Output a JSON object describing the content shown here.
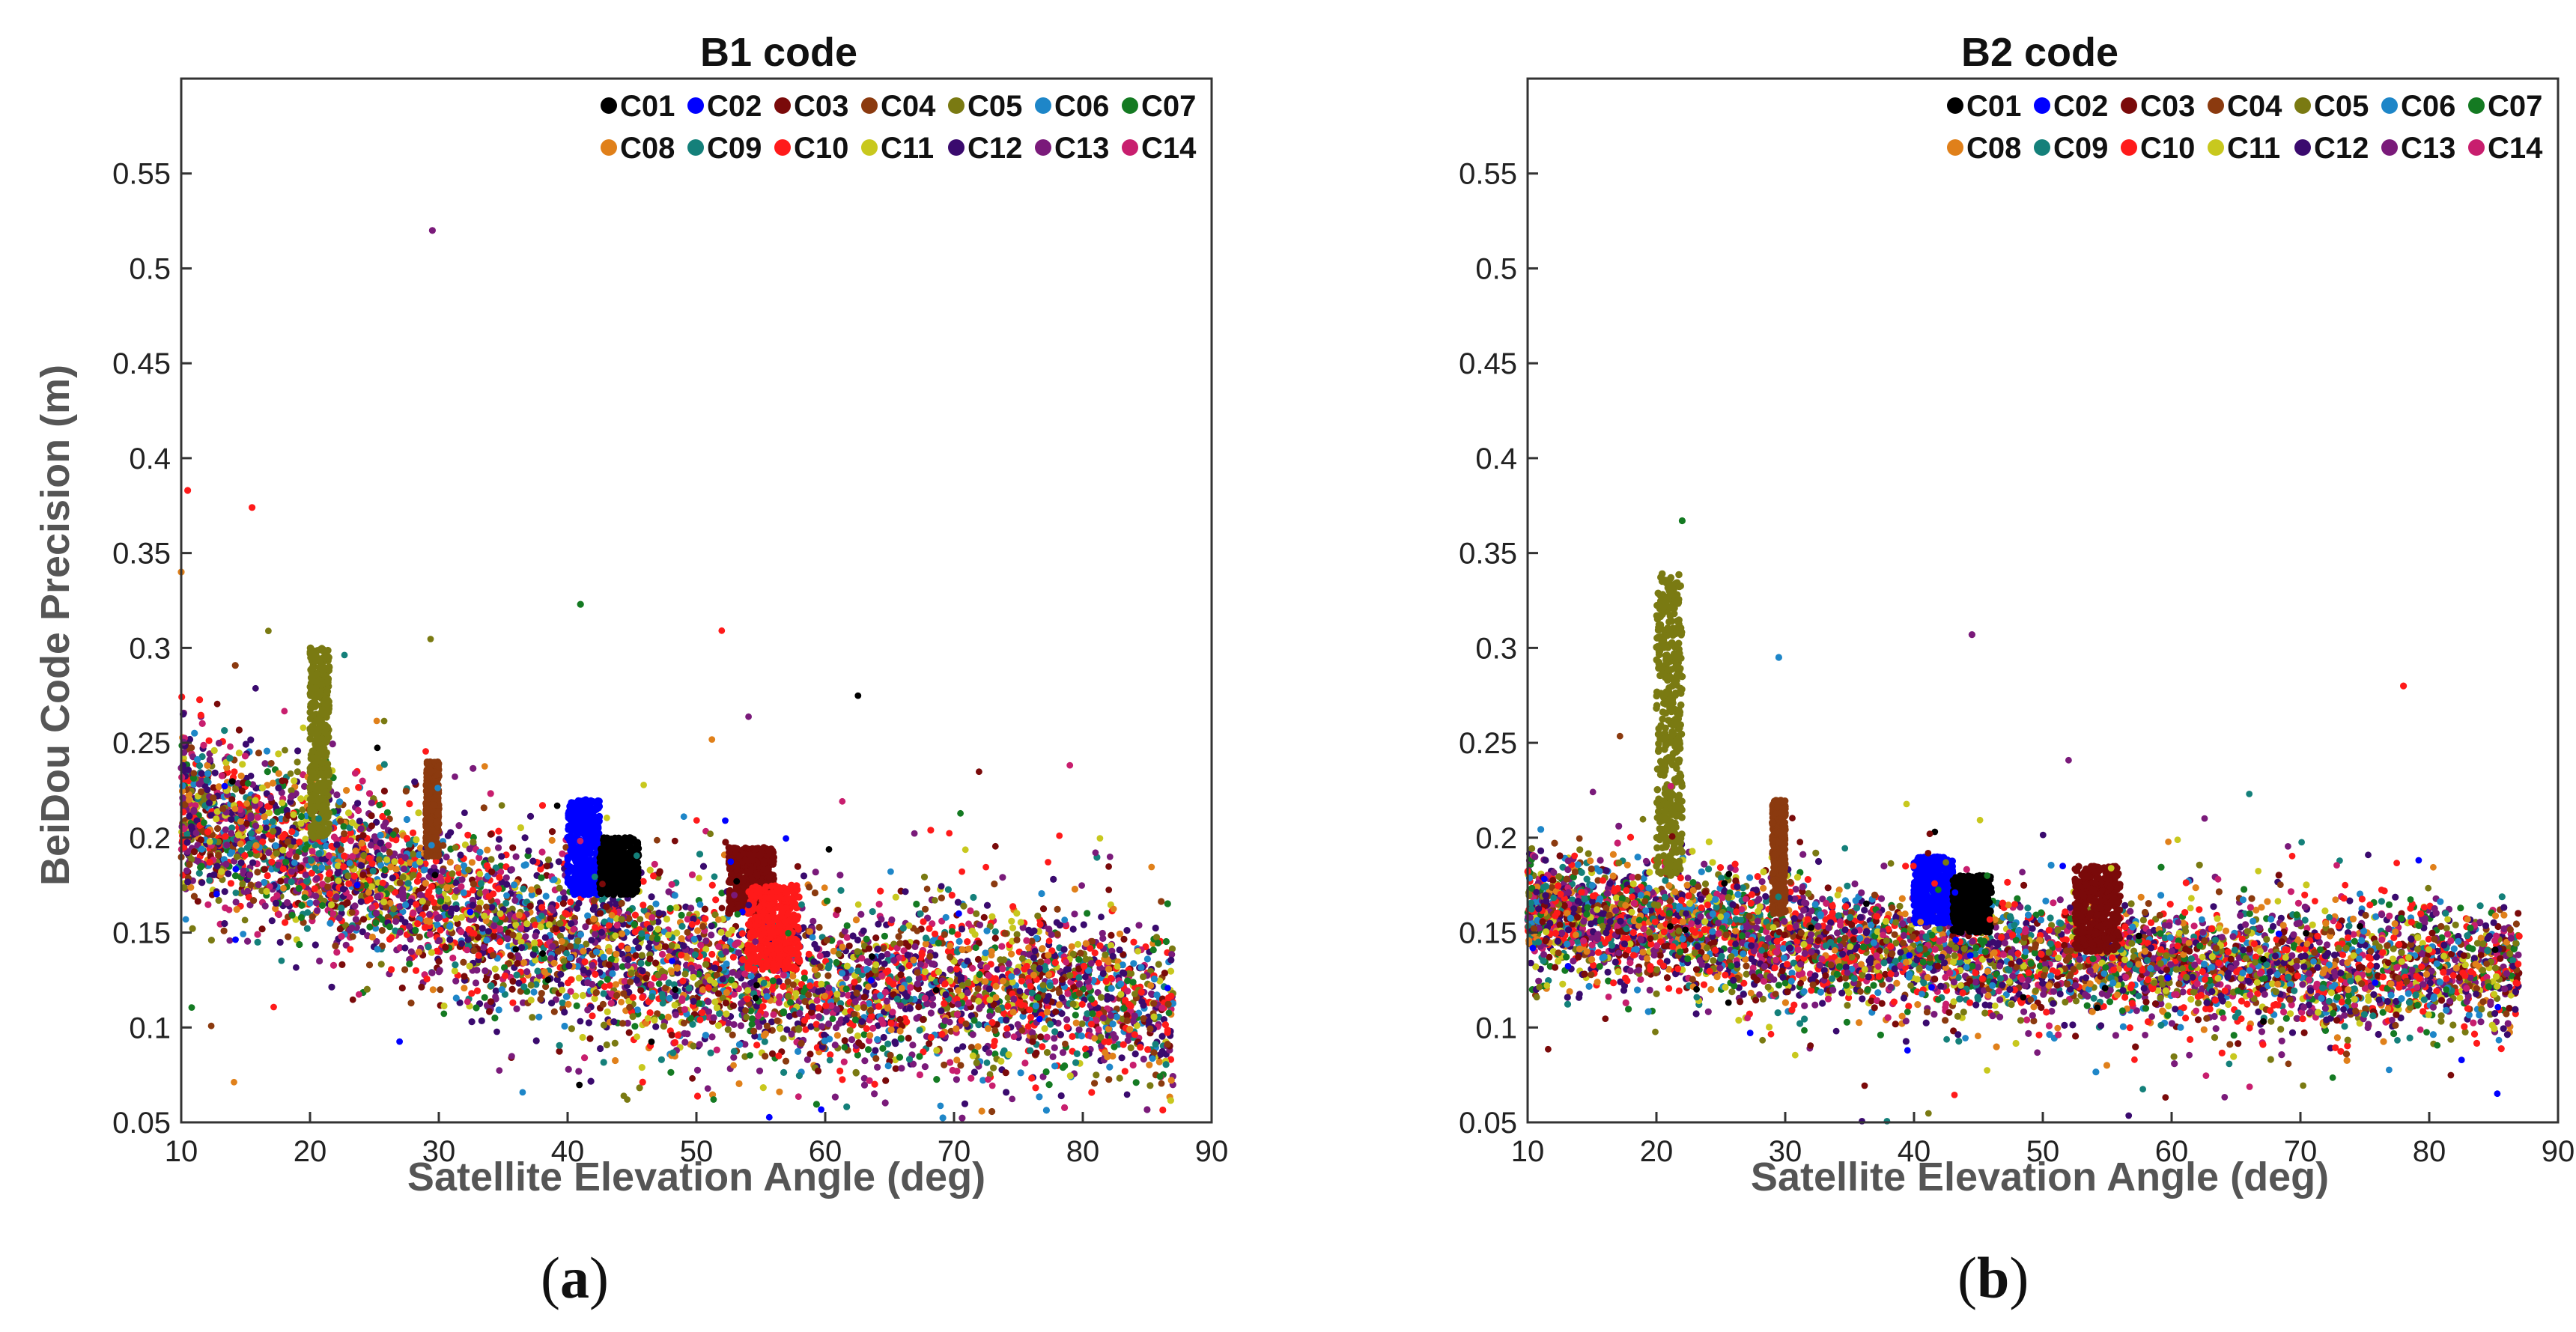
{
  "figure": {
    "panel_a_label": "a",
    "panel_b_label": "b"
  },
  "legend": {
    "entries": [
      {
        "name": "C01",
        "color": "#000000"
      },
      {
        "name": "C02",
        "color": "#0000ff"
      },
      {
        "name": "C03",
        "color": "#7a0a0a"
      },
      {
        "name": "C04",
        "color": "#8b3a0f"
      },
      {
        "name": "C05",
        "color": "#7a7a12"
      },
      {
        "name": "C06",
        "color": "#1e86c8"
      },
      {
        "name": "C07",
        "color": "#147a22"
      },
      {
        "name": "C08",
        "color": "#e0801a"
      },
      {
        "name": "C09",
        "color": "#14807a"
      },
      {
        "name": "C10",
        "color": "#ff1a1a"
      },
      {
        "name": "C11",
        "color": "#c8c81e"
      },
      {
        "name": "C12",
        "color": "#3a0a6e"
      },
      {
        "name": "C13",
        "color": "#7a1a7a"
      },
      {
        "name": "C14",
        "color": "#c81e6e"
      }
    ]
  },
  "chart_data": [
    {
      "type": "scatter",
      "title": "B1 code",
      "xlabel": "Satellite Elevation Angle (deg)",
      "ylabel": "BeiDou Code Precision (m)",
      "xlim": [
        10,
        90
      ],
      "ylim": [
        0.05,
        0.6
      ],
      "xticks": [
        "10",
        "20",
        "30",
        "40",
        "50",
        "60",
        "70",
        "80",
        "90"
      ],
      "yticks": [
        "0.05",
        "0.1",
        "0.15",
        "0.2",
        "0.25",
        "0.3",
        "0.35",
        "0.4",
        "0.45",
        "0.5",
        "0.55"
      ],
      "series_trend": {
        "description": "Precision decreases with elevation for all satellites",
        "points": [
          [
            10,
            0.215
          ],
          [
            20,
            0.19
          ],
          [
            30,
            0.165
          ],
          [
            40,
            0.145
          ],
          [
            50,
            0.13
          ],
          [
            60,
            0.12
          ],
          [
            70,
            0.12
          ],
          [
            80,
            0.12
          ],
          [
            86,
            0.11
          ]
        ]
      },
      "clusters": [
        {
          "name": "C05",
          "x_range": [
            20,
            21.5
          ],
          "y_range": [
            0.2,
            0.3
          ]
        },
        {
          "name": "C04",
          "x_range": [
            29,
            30
          ],
          "y_range": [
            0.19,
            0.24
          ]
        },
        {
          "name": "C02",
          "x_range": [
            40,
            42.5
          ],
          "y_range": [
            0.17,
            0.22
          ]
        },
        {
          "name": "C01",
          "x_range": [
            42.5,
            45.5
          ],
          "y_range": [
            0.17,
            0.2
          ]
        },
        {
          "name": "C03",
          "x_range": [
            52.5,
            56
          ],
          "y_range": [
            0.16,
            0.195
          ]
        },
        {
          "name": "C10",
          "x_range": [
            54,
            58
          ],
          "y_range": [
            0.13,
            0.175
          ]
        }
      ],
      "outliers": [
        [
          29.5,
          0.52
        ],
        [
          10.5,
          0.383
        ],
        [
          15.5,
          0.374
        ],
        [
          10,
          0.34
        ],
        [
          41,
          0.323
        ]
      ]
    },
    {
      "type": "scatter",
      "title": "B2 code",
      "xlabel": "Satellite Elevation Angle (deg)",
      "ylabel": "",
      "xlim": [
        10,
        90
      ],
      "ylim": [
        0.05,
        0.6
      ],
      "xticks": [
        "10",
        "20",
        "30",
        "40",
        "50",
        "60",
        "70",
        "80",
        "90"
      ],
      "yticks": [
        "0.05",
        "0.1",
        "0.15",
        "0.2",
        "0.25",
        "0.3",
        "0.35",
        "0.4",
        "0.45",
        "0.5",
        "0.55"
      ],
      "series_trend": {
        "description": "Precision roughly flat around 0.14-0.16 m",
        "points": [
          [
            10,
            0.16
          ],
          [
            20,
            0.155
          ],
          [
            30,
            0.145
          ],
          [
            40,
            0.14
          ],
          [
            50,
            0.135
          ],
          [
            60,
            0.135
          ],
          [
            70,
            0.13
          ],
          [
            80,
            0.13
          ],
          [
            86,
            0.13
          ]
        ]
      },
      "clusters": [
        {
          "name": "C05",
          "x_range": [
            20,
            22
          ],
          "y_range": [
            0.18,
            0.34
          ]
        },
        {
          "name": "C04",
          "x_range": [
            29,
            30
          ],
          "y_range": [
            0.16,
            0.22
          ]
        },
        {
          "name": "C02",
          "x_range": [
            40,
            43
          ],
          "y_range": [
            0.155,
            0.19
          ]
        },
        {
          "name": "C01",
          "x_range": [
            43,
            46
          ],
          "y_range": [
            0.15,
            0.18
          ]
        },
        {
          "name": "C03",
          "x_range": [
            52.5,
            56
          ],
          "y_range": [
            0.14,
            0.185
          ]
        }
      ],
      "outliers": [
        [
          22,
          0.367
        ],
        [
          44.5,
          0.307
        ],
        [
          29.5,
          0.295
        ],
        [
          78,
          0.28
        ]
      ]
    }
  ]
}
